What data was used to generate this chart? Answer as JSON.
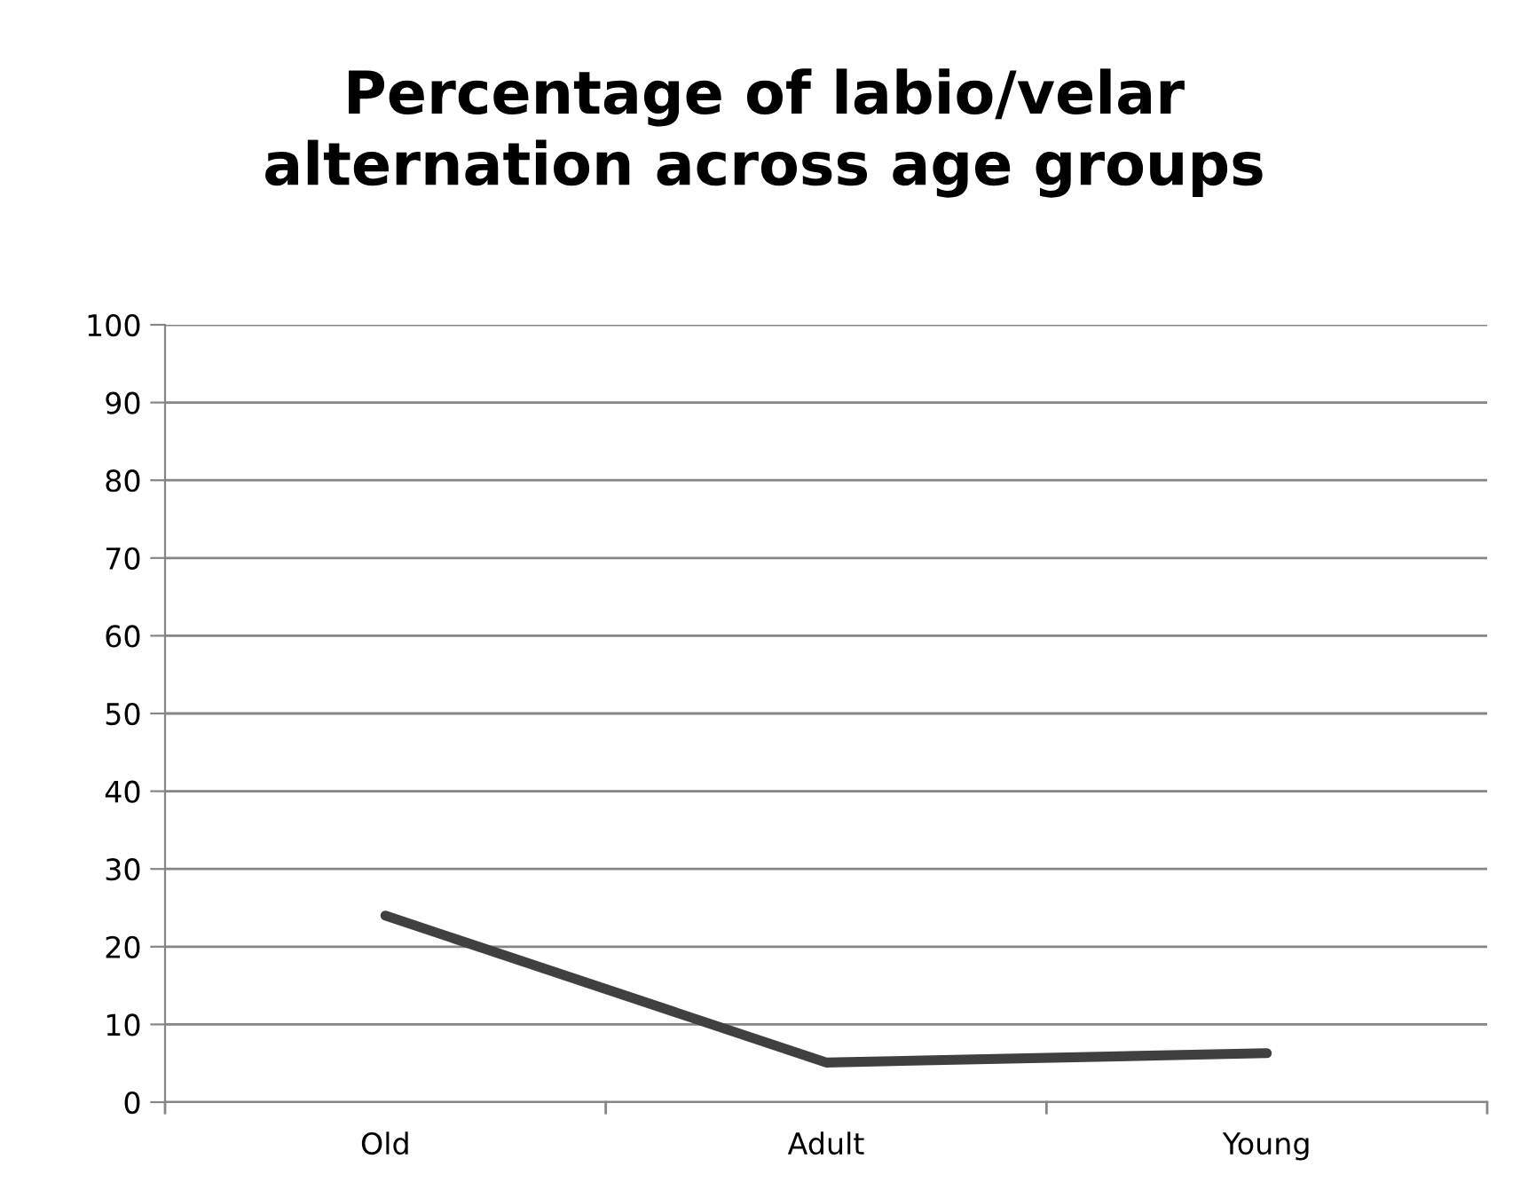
{
  "chart_data": {
    "type": "line",
    "title": "Percentage of labio/velar\nalternation across age groups",
    "categories": [
      "Old",
      "Adult",
      "Young"
    ],
    "series": [
      {
        "color": "#404040",
        "values": [
          24.0,
          5.1,
          6.3
        ]
      }
    ],
    "ylim": [
      0,
      100
    ],
    "yticks": [
      0,
      10,
      20,
      30,
      40,
      50,
      60,
      70,
      80,
      90,
      100
    ],
    "grid": "y",
    "marker": "none",
    "line_style": "solid",
    "legend": false
  }
}
